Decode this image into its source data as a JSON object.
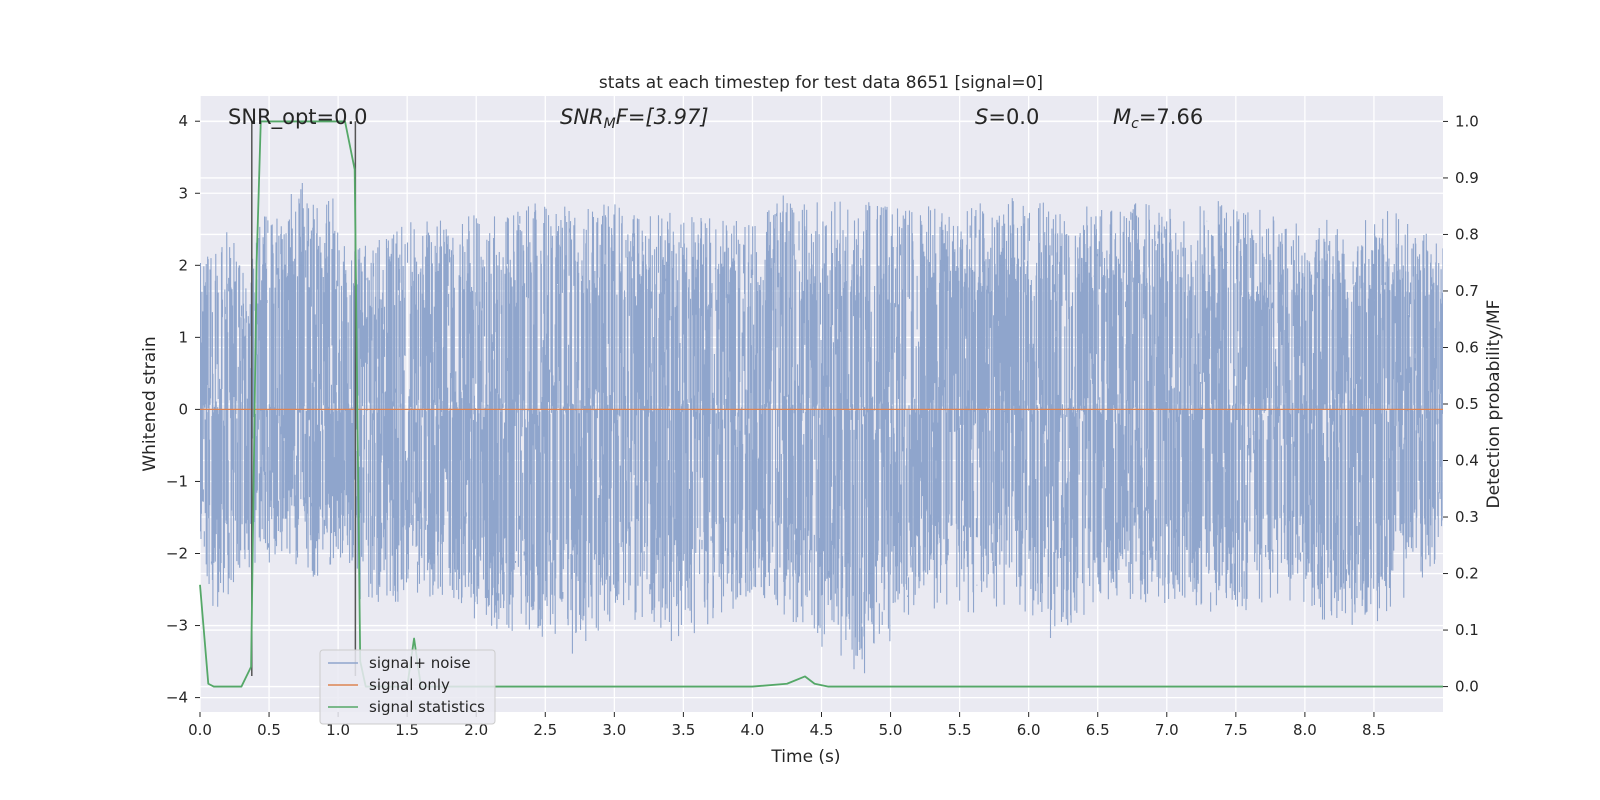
{
  "chart_data": {
    "type": "line",
    "title": "stats at each timestep for test data 8651 [signal=0]",
    "xlabel": "Time (s)",
    "ylabel": "Whitened strain",
    "ylabel_right": "Detection probability/MF",
    "xlim": [
      0.0,
      9.0
    ],
    "ylim": [
      -4.2,
      4.35
    ],
    "ylim_right": [
      -0.045,
      1.045
    ],
    "xticks": [
      "0.0",
      "0.5",
      "1.0",
      "1.5",
      "2.0",
      "2.5",
      "3.0",
      "3.5",
      "4.0",
      "4.5",
      "5.0",
      "5.5",
      "6.0",
      "6.5",
      "7.0",
      "7.5",
      "8.0",
      "8.5"
    ],
    "yticks_left": [
      "−4",
      "−3",
      "−2",
      "−1",
      "0",
      "1",
      "2",
      "3",
      "4"
    ],
    "yticks_right": [
      "0.0",
      "0.1",
      "0.2",
      "0.3",
      "0.4",
      "0.5",
      "0.6",
      "0.7",
      "0.8",
      "0.9",
      "1.0"
    ],
    "grid": true,
    "legend_position": "lower-left",
    "annotations": {
      "snr_opt": "SNR_opt=0.0",
      "snr_mf_main": "SNR",
      "snr_mf_sub": "M",
      "snr_mf_tail": "F=[3.97]",
      "s_main": "S",
      "s_tail": "=0.0",
      "mc_main": "M",
      "mc_sub": "c",
      "mc_tail": "=7.66"
    },
    "vertical_lines": {
      "x": [
        0.375,
        1.125
      ],
      "y_range": [
        -3.7,
        4.0
      ],
      "color": "#555555"
    },
    "series": [
      {
        "name": "signal+ noise",
        "color": "#8fa5cc",
        "axis": "left",
        "kind": "noise",
        "envelope_positive": [
          [
            0.0,
            2.3
          ],
          [
            0.08,
            2.1
          ],
          [
            0.2,
            2.5
          ],
          [
            0.36,
            1.9
          ],
          [
            0.44,
            2.9
          ],
          [
            0.58,
            2.6
          ],
          [
            0.7,
            3.35
          ],
          [
            0.78,
            3.1
          ],
          [
            0.96,
            3.0
          ],
          [
            1.1,
            2.2
          ],
          [
            1.5,
            2.6
          ],
          [
            2.0,
            2.7
          ],
          [
            2.4,
            2.9
          ],
          [
            2.8,
            2.9
          ],
          [
            3.2,
            2.8
          ],
          [
            3.6,
            2.7
          ],
          [
            4.0,
            2.6
          ],
          [
            4.2,
            3.0
          ],
          [
            4.4,
            2.9
          ],
          [
            4.8,
            2.9
          ],
          [
            5.2,
            2.8
          ],
          [
            5.5,
            2.9
          ],
          [
            5.9,
            3.0
          ],
          [
            6.3,
            2.8
          ],
          [
            6.7,
            2.9
          ],
          [
            7.1,
            2.8
          ],
          [
            7.5,
            3.0
          ],
          [
            7.9,
            2.6
          ],
          [
            8.3,
            2.7
          ],
          [
            8.6,
            2.8
          ],
          [
            9.0,
            2.3
          ]
        ],
        "envelope_negative": [
          [
            0.0,
            -1.9
          ],
          [
            0.1,
            -2.9
          ],
          [
            0.3,
            -2.3
          ],
          [
            0.4,
            -2.2
          ],
          [
            0.6,
            -2.2
          ],
          [
            0.8,
            -2.4
          ],
          [
            1.0,
            -2.1
          ],
          [
            1.2,
            -2.8
          ],
          [
            1.5,
            -2.7
          ],
          [
            1.8,
            -2.6
          ],
          [
            2.0,
            -3.0
          ],
          [
            2.5,
            -3.2
          ],
          [
            2.7,
            -3.4
          ],
          [
            3.0,
            -2.9
          ],
          [
            3.5,
            -3.3
          ],
          [
            4.0,
            -2.6
          ],
          [
            4.35,
            -3.1
          ],
          [
            4.8,
            -3.7
          ],
          [
            5.2,
            -2.7
          ],
          [
            5.5,
            -2.9
          ],
          [
            5.9,
            -2.7
          ],
          [
            6.15,
            -3.2
          ],
          [
            6.6,
            -2.6
          ],
          [
            7.0,
            -2.8
          ],
          [
            7.5,
            -2.9
          ],
          [
            7.8,
            -2.6
          ],
          [
            8.3,
            -3.1
          ],
          [
            8.6,
            -2.9
          ],
          [
            9.0,
            -2.1
          ]
        ]
      },
      {
        "name": "signal only",
        "color": "#dd8452",
        "axis": "left",
        "x": [
          0.0,
          9.0
        ],
        "y": [
          0.0,
          0.0
        ]
      },
      {
        "name": "signal statistics",
        "color": "#55a868",
        "axis": "right",
        "x": [
          0.0,
          0.06,
          0.1,
          0.3,
          0.37,
          0.41,
          0.44,
          0.5,
          1.05,
          1.12,
          1.16,
          1.2,
          1.5,
          1.55,
          1.6,
          2.0,
          4.0,
          4.25,
          4.38,
          4.45,
          4.55,
          5.0,
          9.0
        ],
        "y": [
          0.18,
          0.005,
          0.0,
          0.0,
          0.035,
          0.75,
          1.0,
          1.0,
          1.0,
          0.915,
          0.045,
          0.0,
          0.0,
          0.085,
          0.0,
          0.0,
          0.0,
          0.005,
          0.018,
          0.005,
          0.0,
          0.0,
          0.0
        ]
      }
    ]
  },
  "colors": {
    "plot_background": "#eaeaf2",
    "grid": "#ffffff"
  }
}
